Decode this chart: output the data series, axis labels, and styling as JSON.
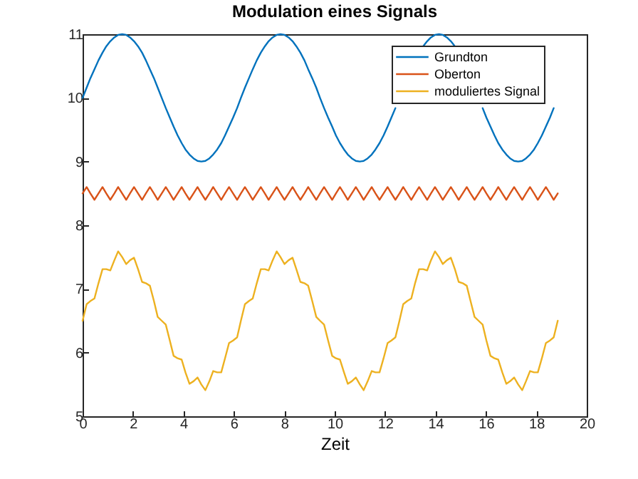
{
  "chart_data": {
    "type": "line",
    "title": "Modulation eines Signals",
    "xlabel": "Zeit",
    "xlim": [
      0,
      20
    ],
    "ylim": [
      5,
      11
    ],
    "xticks": [
      0,
      2,
      4,
      6,
      8,
      10,
      12,
      14,
      16,
      18,
      20
    ],
    "yticks": [
      5,
      6,
      7,
      8,
      9,
      10,
      11
    ],
    "grid": false,
    "legend": "top right",
    "marker": "none",
    "line_style": "solid",
    "x": [
      0,
      0.16,
      0.31,
      0.47,
      0.63,
      0.79,
      0.94,
      1.1,
      1.26,
      1.41,
      1.57,
      1.73,
      1.88,
      2.04,
      2.2,
      2.36,
      2.51,
      2.67,
      2.83,
      2.98,
      3.14,
      3.3,
      3.46,
      3.61,
      3.77,
      3.93,
      4.08,
      4.24,
      4.4,
      4.56,
      4.71,
      4.87,
      5.03,
      5.18,
      5.34,
      5.5,
      5.65,
      5.81,
      5.97,
      6.13,
      6.28,
      6.44,
      6.6,
      6.75,
      6.91,
      7.07,
      7.23,
      7.38,
      7.54,
      7.7,
      7.85,
      8.01,
      8.17,
      8.33,
      8.48,
      8.64,
      8.8,
      8.95,
      9.11,
      9.27,
      9.42,
      9.58,
      9.74,
      9.9,
      10.05,
      10.21,
      10.37,
      10.52,
      10.68,
      10.84,
      11.0,
      11.15,
      11.31,
      11.47,
      11.62,
      11.78,
      11.94,
      12.1,
      12.25,
      12.41,
      12.57,
      12.72,
      12.88,
      13.04,
      13.19,
      13.35,
      13.51,
      13.67,
      13.82,
      13.98,
      14.14,
      14.29,
      14.45,
      14.61,
      14.77,
      14.92,
      15.08,
      15.24,
      15.39,
      15.55,
      15.71,
      15.87,
      16.02,
      16.18,
      16.34,
      16.49,
      16.65,
      16.81,
      16.96,
      17.12,
      17.28,
      17.44,
      17.59,
      17.75,
      17.91,
      18.06,
      18.22,
      18.38,
      18.54,
      18.69,
      18.85
    ],
    "series": [
      {
        "name": "Grundton",
        "color": "#0072bd",
        "values": [
          10,
          10.16,
          10.31,
          10.45,
          10.59,
          10.71,
          10.81,
          10.89,
          10.95,
          10.99,
          11,
          10.99,
          10.95,
          10.89,
          10.81,
          10.71,
          10.59,
          10.45,
          10.31,
          10.16,
          10,
          9.84,
          9.69,
          9.55,
          9.41,
          9.29,
          9.19,
          9.11,
          9.05,
          9.01,
          9,
          9.01,
          9.05,
          9.11,
          9.19,
          9.29,
          9.41,
          9.55,
          9.69,
          9.84,
          10,
          10.16,
          10.31,
          10.45,
          10.59,
          10.71,
          10.81,
          10.89,
          10.95,
          10.99,
          11,
          10.99,
          10.95,
          10.89,
          10.81,
          10.71,
          10.59,
          10.45,
          10.31,
          10.16,
          10,
          9.84,
          9.69,
          9.55,
          9.41,
          9.29,
          9.19,
          9.11,
          9.05,
          9.01,
          9,
          9.01,
          9.05,
          9.11,
          9.19,
          9.29,
          9.41,
          9.55,
          9.69,
          9.84,
          null,
          null,
          null,
          null,
          null,
          null,
          10.81,
          10.89,
          10.95,
          10.99,
          11,
          10.99,
          10.95,
          10.89,
          10.81,
          null,
          null,
          null,
          null,
          null,
          null,
          9.84,
          9.69,
          9.55,
          9.41,
          9.29,
          9.19,
          9.11,
          9.05,
          9.01,
          9,
          9.01,
          9.05,
          9.11,
          9.19,
          9.29,
          9.41,
          9.55,
          9.69,
          9.84,
          null
        ]
      },
      {
        "name": "Oberton",
        "color": "#d95319",
        "values": [
          8.5,
          8.6,
          8.5,
          8.4,
          8.5,
          8.6,
          8.5,
          8.4,
          8.5,
          8.6,
          8.5,
          8.4,
          8.5,
          8.6,
          8.5,
          8.4,
          8.5,
          8.6,
          8.5,
          8.4,
          8.5,
          8.6,
          8.5,
          8.4,
          8.5,
          8.6,
          8.5,
          8.4,
          8.5,
          8.6,
          8.5,
          8.4,
          8.5,
          8.6,
          8.5,
          8.4,
          8.5,
          8.6,
          8.5,
          8.4,
          8.5,
          8.6,
          8.5,
          8.4,
          8.5,
          8.6,
          8.5,
          8.4,
          8.5,
          8.6,
          8.5,
          8.4,
          8.5,
          8.6,
          8.5,
          8.4,
          8.5,
          8.6,
          8.5,
          8.4,
          8.5,
          8.6,
          8.5,
          8.4,
          8.5,
          8.6,
          8.5,
          8.4,
          8.5,
          8.6,
          8.5,
          8.4,
          8.5,
          8.6,
          8.5,
          8.4,
          8.5,
          8.6,
          8.5,
          8.4,
          8.5,
          8.6,
          8.5,
          8.4,
          8.5,
          8.6,
          8.5,
          8.4,
          8.5,
          8.6,
          8.5,
          8.4,
          8.5,
          8.6,
          8.5,
          8.4,
          8.5,
          8.6,
          8.5,
          8.4,
          8.5,
          8.6,
          8.5,
          8.4,
          8.5,
          8.6,
          8.5,
          8.4,
          8.5,
          8.6,
          8.5,
          8.4,
          8.5,
          8.6,
          8.5,
          8.4,
          8.5,
          8.6,
          8.5,
          8.4,
          8.5
        ]
      },
      {
        "name": "moduliertes Signal",
        "color": "#edb120",
        "values": [
          6.5,
          6.76,
          6.81,
          6.85,
          7.09,
          7.31,
          7.31,
          7.29,
          7.45,
          7.59,
          7.5,
          7.39,
          7.45,
          7.49,
          7.31,
          7.11,
          7.09,
          7.05,
          6.81,
          6.56,
          6.5,
          6.44,
          6.19,
          5.95,
          5.91,
          5.89,
          5.69,
          5.51,
          5.55,
          5.61,
          5.5,
          5.41,
          5.55,
          5.71,
          5.69,
          5.69,
          5.91,
          6.15,
          6.19,
          6.24,
          6.5,
          6.76,
          6.81,
          6.85,
          7.09,
          7.31,
          7.31,
          7.29,
          7.45,
          7.59,
          7.5,
          7.39,
          7.45,
          7.49,
          7.31,
          7.11,
          7.09,
          7.05,
          6.81,
          6.56,
          6.5,
          6.44,
          6.19,
          5.95,
          5.91,
          5.89,
          5.69,
          5.51,
          5.55,
          5.61,
          5.5,
          5.41,
          5.55,
          5.71,
          5.69,
          5.69,
          5.91,
          6.15,
          6.19,
          6.24,
          6.5,
          6.76,
          6.81,
          6.85,
          7.09,
          7.31,
          7.31,
          7.29,
          7.45,
          7.59,
          7.5,
          7.39,
          7.45,
          7.49,
          7.31,
          7.11,
          7.09,
          7.05,
          6.81,
          6.56,
          6.5,
          6.44,
          6.19,
          5.95,
          5.91,
          5.89,
          5.69,
          5.51,
          5.55,
          5.61,
          5.5,
          5.41,
          5.55,
          5.71,
          5.69,
          5.69,
          5.91,
          6.15,
          6.19,
          6.24,
          6.5
        ]
      }
    ]
  }
}
